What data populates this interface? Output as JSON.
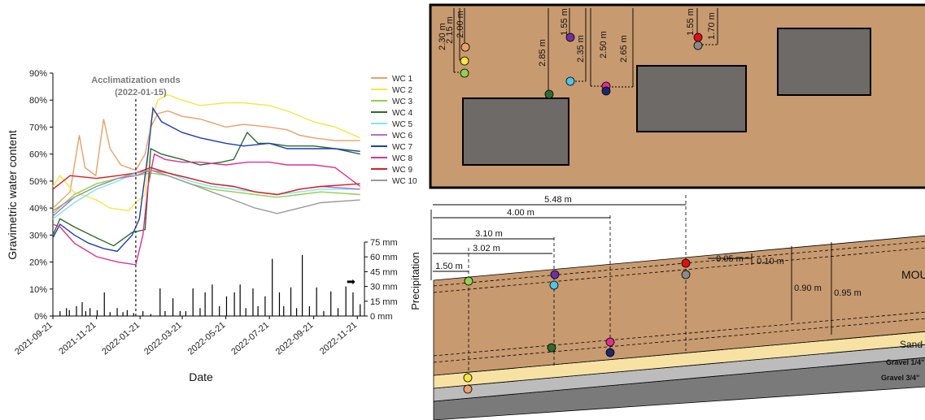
{
  "chart_data": {
    "type": "line",
    "xlabel": "Date",
    "ylabel": "Gravimetric water content",
    "y2label": "Precipitation",
    "x_ticks": [
      "2021-09-21",
      "2021-11-21",
      "2022-01-21",
      "2022-03-21",
      "2022-05-21",
      "2022-07-21",
      "2022-09-21",
      "2022-11-21"
    ],
    "y_ticks": [
      "0%",
      "10%",
      "20%",
      "30%",
      "40%",
      "50%",
      "60%",
      "70%",
      "80%",
      "90%"
    ],
    "y2_ticks": [
      "0 mm",
      "15 mm",
      "30 mm",
      "45 mm",
      "60 mm",
      "75 mm"
    ],
    "ylim": [
      0,
      0.9
    ],
    "y2lim": [
      0,
      75
    ],
    "xlim": [
      "2021-09-21",
      "2022-12-01"
    ],
    "annotation": {
      "text_line1": "Acclimatization ends",
      "text_line2": "(2022-01-15)",
      "date": "2022-01-15"
    },
    "arrow_glyph": "➡",
    "grid": false,
    "legend_position": "right",
    "series": [
      {
        "name": "WC 1",
        "color": "#e8a16a",
        "points": [
          [
            "2021-09-21",
            0.4
          ],
          [
            "2021-10-15",
            0.46
          ],
          [
            "2021-10-28",
            0.67
          ],
          [
            "2021-11-05",
            0.55
          ],
          [
            "2021-11-20",
            0.52
          ],
          [
            "2021-12-01",
            0.73
          ],
          [
            "2021-12-10",
            0.62
          ],
          [
            "2021-12-25",
            0.56
          ],
          [
            "2022-01-15",
            0.54
          ],
          [
            "2022-01-28",
            0.6
          ],
          [
            "2022-02-05",
            0.7
          ],
          [
            "2022-02-15",
            0.75
          ],
          [
            "2022-03-01",
            0.76
          ],
          [
            "2022-03-21",
            0.74
          ],
          [
            "2022-04-15",
            0.73
          ],
          [
            "2022-05-21",
            0.7
          ],
          [
            "2022-06-15",
            0.71
          ],
          [
            "2022-07-21",
            0.7
          ],
          [
            "2022-08-15",
            0.69
          ],
          [
            "2022-09-01",
            0.67
          ],
          [
            "2022-09-21",
            0.66
          ],
          [
            "2022-10-21",
            0.65
          ],
          [
            "2022-11-25",
            0.65
          ]
        ]
      },
      {
        "name": "WC 2",
        "color": "#f5e642",
        "points": [
          [
            "2021-09-21",
            0.48
          ],
          [
            "2021-10-01",
            0.52
          ],
          [
            "2021-10-20",
            0.46
          ],
          [
            "2021-11-21",
            0.43
          ],
          [
            "2021-12-10",
            0.4
          ],
          [
            "2022-01-05",
            0.39
          ],
          [
            "2022-01-15",
            0.42
          ],
          [
            "2022-01-28",
            0.45
          ],
          [
            "2022-02-05",
            0.72
          ],
          [
            "2022-02-15",
            0.8
          ],
          [
            "2022-03-01",
            0.82
          ],
          [
            "2022-03-21",
            0.8
          ],
          [
            "2022-04-15",
            0.78
          ],
          [
            "2022-05-21",
            0.79
          ],
          [
            "2022-06-15",
            0.79
          ],
          [
            "2022-07-21",
            0.78
          ],
          [
            "2022-08-15",
            0.76
          ],
          [
            "2022-09-21",
            0.72
          ],
          [
            "2022-10-21",
            0.7
          ],
          [
            "2022-11-25",
            0.66
          ]
        ]
      },
      {
        "name": "WC 3",
        "color": "#92d050",
        "points": [
          [
            "2021-09-21",
            0.38
          ],
          [
            "2021-10-21",
            0.45
          ],
          [
            "2021-11-21",
            0.49
          ],
          [
            "2021-12-21",
            0.51
          ],
          [
            "2022-01-15",
            0.52
          ],
          [
            "2022-02-05",
            0.53
          ],
          [
            "2022-03-01",
            0.52
          ],
          [
            "2022-04-01",
            0.49
          ],
          [
            "2022-05-01",
            0.47
          ],
          [
            "2022-06-01",
            0.46
          ],
          [
            "2022-07-01",
            0.45
          ],
          [
            "2022-08-01",
            0.44
          ],
          [
            "2022-09-01",
            0.45
          ],
          [
            "2022-10-01",
            0.46
          ],
          [
            "2022-11-25",
            0.45
          ]
        ]
      },
      {
        "name": "WC 4",
        "color": "#2e6b2e",
        "points": [
          [
            "2021-09-21",
            0.3
          ],
          [
            "2021-10-01",
            0.36
          ],
          [
            "2021-10-21",
            0.33
          ],
          [
            "2021-11-21",
            0.29
          ],
          [
            "2021-12-15",
            0.26
          ],
          [
            "2022-01-10",
            0.31
          ],
          [
            "2022-01-28",
            0.32
          ],
          [
            "2022-02-05",
            0.62
          ],
          [
            "2022-02-20",
            0.6
          ],
          [
            "2022-03-21",
            0.58
          ],
          [
            "2022-04-15",
            0.56
          ],
          [
            "2022-05-15",
            0.57
          ],
          [
            "2022-06-01",
            0.58
          ],
          [
            "2022-06-20",
            0.68
          ],
          [
            "2022-07-05",
            0.64
          ],
          [
            "2022-07-21",
            0.64
          ],
          [
            "2022-08-15",
            0.63
          ],
          [
            "2022-09-21",
            0.63
          ],
          [
            "2022-10-21",
            0.62
          ],
          [
            "2022-11-25",
            0.6
          ]
        ]
      },
      {
        "name": "WC 5",
        "color": "#7fe5f0",
        "points": [
          [
            "2021-09-21",
            0.36
          ],
          [
            "2021-10-21",
            0.42
          ],
          [
            "2021-11-21",
            0.47
          ],
          [
            "2021-12-21",
            0.5
          ],
          [
            "2022-01-15",
            0.53
          ],
          [
            "2022-02-05",
            0.55
          ],
          [
            "2022-03-01",
            0.53
          ],
          [
            "2022-04-01",
            0.5
          ],
          [
            "2022-05-01",
            0.48
          ],
          [
            "2022-06-01",
            0.47
          ],
          [
            "2022-07-01",
            0.46
          ],
          [
            "2022-08-01",
            0.45
          ],
          [
            "2022-09-01",
            0.46
          ],
          [
            "2022-10-01",
            0.47
          ],
          [
            "2022-11-25",
            0.47
          ]
        ]
      },
      {
        "name": "WC 6",
        "color": "#b070d0",
        "points": [
          [
            "2021-09-21",
            0.37
          ],
          [
            "2021-10-21",
            0.44
          ],
          [
            "2021-11-21",
            0.48
          ],
          [
            "2021-12-21",
            0.51
          ],
          [
            "2022-01-15",
            0.52
          ],
          [
            "2022-02-05",
            0.54
          ],
          [
            "2022-03-01",
            0.53
          ],
          [
            "2022-04-01",
            0.51
          ],
          [
            "2022-05-01",
            0.49
          ],
          [
            "2022-06-01",
            0.48
          ],
          [
            "2022-07-01",
            0.46
          ],
          [
            "2022-08-01",
            0.45
          ],
          [
            "2022-09-01",
            0.47
          ],
          [
            "2022-10-01",
            0.48
          ],
          [
            "2022-11-25",
            0.47
          ]
        ]
      },
      {
        "name": "WC 7",
        "color": "#1f3fb0",
        "points": [
          [
            "2021-09-21",
            0.29
          ],
          [
            "2021-10-01",
            0.34
          ],
          [
            "2021-10-21",
            0.3
          ],
          [
            "2021-11-10",
            0.27
          ],
          [
            "2021-12-01",
            0.25
          ],
          [
            "2021-12-20",
            0.24
          ],
          [
            "2022-01-10",
            0.3
          ],
          [
            "2022-01-20",
            0.36
          ],
          [
            "2022-02-01",
            0.6
          ],
          [
            "2022-02-08",
            0.77
          ],
          [
            "2022-02-20",
            0.72
          ],
          [
            "2022-03-21",
            0.68
          ],
          [
            "2022-04-15",
            0.66
          ],
          [
            "2022-05-21",
            0.64
          ],
          [
            "2022-06-15",
            0.63
          ],
          [
            "2022-07-21",
            0.64
          ],
          [
            "2022-08-15",
            0.62
          ],
          [
            "2022-09-21",
            0.62
          ],
          [
            "2022-10-21",
            0.62
          ],
          [
            "2022-11-25",
            0.61
          ]
        ]
      },
      {
        "name": "WC 8",
        "color": "#e0308f",
        "points": [
          [
            "2021-09-21",
            0.34
          ],
          [
            "2021-10-01",
            0.33
          ],
          [
            "2021-10-21",
            0.27
          ],
          [
            "2021-11-21",
            0.22
          ],
          [
            "2021-12-21",
            0.2
          ],
          [
            "2022-01-15",
            0.19
          ],
          [
            "2022-01-25",
            0.3
          ],
          [
            "2022-02-01",
            0.48
          ],
          [
            "2022-02-10",
            0.6
          ],
          [
            "2022-02-25",
            0.58
          ],
          [
            "2022-03-21",
            0.57
          ],
          [
            "2022-04-15",
            0.57
          ],
          [
            "2022-05-21",
            0.56
          ],
          [
            "2022-06-21",
            0.57
          ],
          [
            "2022-07-21",
            0.57
          ],
          [
            "2022-08-15",
            0.56
          ],
          [
            "2022-09-21",
            0.56
          ],
          [
            "2022-10-21",
            0.55
          ],
          [
            "2022-11-25",
            0.48
          ]
        ]
      },
      {
        "name": "WC 9",
        "color": "#d62020",
        "points": [
          [
            "2021-09-21",
            0.47
          ],
          [
            "2021-10-15",
            0.52
          ],
          [
            "2021-11-21",
            0.51
          ],
          [
            "2021-12-21",
            0.52
          ],
          [
            "2022-01-15",
            0.53
          ],
          [
            "2022-02-05",
            0.55
          ],
          [
            "2022-03-01",
            0.53
          ],
          [
            "2022-04-01",
            0.51
          ],
          [
            "2022-05-01",
            0.49
          ],
          [
            "2022-06-01",
            0.48
          ],
          [
            "2022-07-01",
            0.46
          ],
          [
            "2022-08-01",
            0.45
          ],
          [
            "2022-09-01",
            0.47
          ],
          [
            "2022-10-01",
            0.48
          ],
          [
            "2022-11-25",
            0.49
          ]
        ]
      },
      {
        "name": "WC 10",
        "color": "#9a9a9a",
        "points": [
          [
            "2021-09-21",
            0.39
          ],
          [
            "2021-10-21",
            0.44
          ],
          [
            "2021-11-21",
            0.48
          ],
          [
            "2021-12-21",
            0.51
          ],
          [
            "2022-01-15",
            0.53
          ],
          [
            "2022-02-05",
            0.54
          ],
          [
            "2022-03-01",
            0.52
          ],
          [
            "2022-04-01",
            0.49
          ],
          [
            "2022-05-01",
            0.46
          ],
          [
            "2022-06-01",
            0.43
          ],
          [
            "2022-07-01",
            0.4
          ],
          [
            "2022-08-01",
            0.38
          ],
          [
            "2022-09-01",
            0.4
          ],
          [
            "2022-10-01",
            0.42
          ],
          [
            "2022-11-25",
            0.43
          ]
        ]
      }
    ],
    "precipitation_mm": [
      [
        "2021-10-01",
        5
      ],
      [
        "2021-10-10",
        8
      ],
      [
        "2021-10-14",
        6
      ],
      [
        "2021-10-24",
        10
      ],
      [
        "2021-11-01",
        14
      ],
      [
        "2021-11-06",
        5
      ],
      [
        "2021-11-12",
        8
      ],
      [
        "2021-11-22",
        6
      ],
      [
        "2021-12-02",
        24
      ],
      [
        "2021-12-10",
        4
      ],
      [
        "2021-12-20",
        8
      ],
      [
        "2021-12-28",
        4
      ],
      [
        "2022-01-03",
        6
      ],
      [
        "2022-01-12",
        3
      ],
      [
        "2022-01-25",
        5
      ],
      [
        "2022-02-05",
        2
      ],
      [
        "2022-02-18",
        28
      ],
      [
        "2022-02-25",
        5
      ],
      [
        "2022-03-08",
        18
      ],
      [
        "2022-03-18",
        5
      ],
      [
        "2022-03-26",
        5
      ],
      [
        "2022-04-05",
        28
      ],
      [
        "2022-04-15",
        8
      ],
      [
        "2022-04-22",
        24
      ],
      [
        "2022-05-02",
        32
      ],
      [
        "2022-05-12",
        10
      ],
      [
        "2022-05-22",
        20
      ],
      [
        "2022-06-02",
        24
      ],
      [
        "2022-06-10",
        32
      ],
      [
        "2022-06-18",
        8
      ],
      [
        "2022-06-28",
        28
      ],
      [
        "2022-07-05",
        10
      ],
      [
        "2022-07-15",
        20
      ],
      [
        "2022-07-25",
        58
      ],
      [
        "2022-08-04",
        24
      ],
      [
        "2022-08-10",
        10
      ],
      [
        "2022-08-20",
        29
      ],
      [
        "2022-08-28",
        8
      ],
      [
        "2022-09-05",
        62
      ],
      [
        "2022-09-15",
        10
      ],
      [
        "2022-09-25",
        29
      ],
      [
        "2022-10-05",
        5
      ],
      [
        "2022-10-15",
        25
      ],
      [
        "2022-10-25",
        8
      ],
      [
        "2022-11-05",
        30
      ],
      [
        "2022-11-15",
        24
      ],
      [
        "2022-11-25",
        12
      ]
    ]
  },
  "diagram": {
    "plan_view": {
      "depth_labels": [
        "2.30 m",
        "2.15 m",
        "2.00 m",
        "2.85 m",
        "1.55 m",
        "2.35 m",
        "2.50 m",
        "2.65 m",
        "1.55 m",
        "1.70 m"
      ],
      "sensors": [
        {
          "id": "WC 1",
          "color": "#e8a16a"
        },
        {
          "id": "WC 2",
          "color": "#f5e642"
        },
        {
          "id": "WC 3",
          "color": "#92d050"
        },
        {
          "id": "WC 4",
          "color": "#2e6b2e"
        },
        {
          "id": "WC 6",
          "color": "#7030a0"
        },
        {
          "id": "WC 5",
          "color": "#4fc3e8"
        },
        {
          "id": "WC 8",
          "color": "#e0308f"
        },
        {
          "id": "WC 7",
          "color": "#1a2a6c"
        },
        {
          "id": "WC 9",
          "color": "#e01010"
        },
        {
          "id": "WC 10",
          "color": "#8a8a8a"
        }
      ]
    },
    "section_view": {
      "horizontal_labels": [
        "5.48 m",
        "4.00 m",
        "3.10 m",
        "3.02 m",
        "1.50 m"
      ],
      "vertical_labels": [
        "0.05 m",
        "0.10 m",
        "0.90 m",
        "0.95 m"
      ],
      "layers": [
        "MOU",
        "Sand",
        "Gravel 1/4\"",
        "Gravel 3/4\""
      ]
    }
  }
}
